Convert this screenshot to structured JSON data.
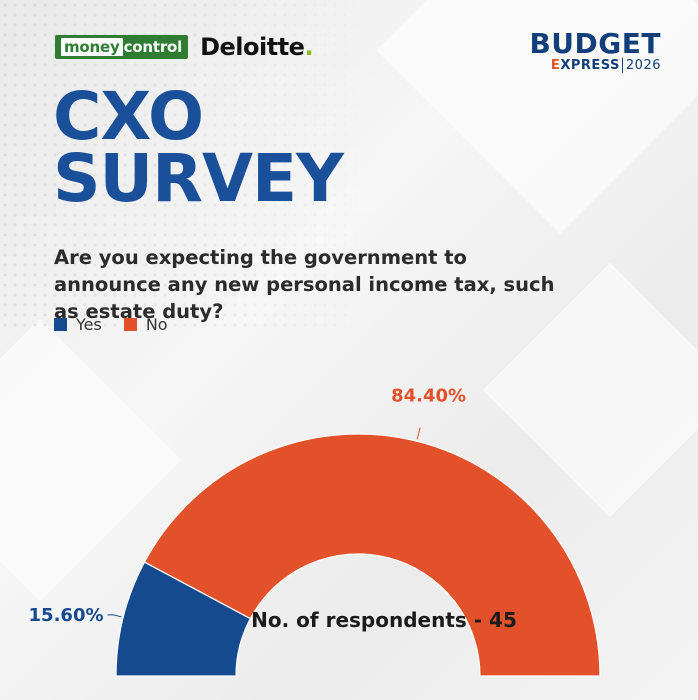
{
  "header": {
    "partner_logo_1": "moneycontrol",
    "partner_logo_2": "Deloitte",
    "brand": {
      "line1": "BUDGET",
      "line2": "EXPRESS",
      "year": "2026"
    }
  },
  "title": {
    "line1": "CXO",
    "line2": "SURVEY"
  },
  "question": "Are you expecting the government to announce any new personal income tax, such as estate duty?",
  "colors": {
    "yes": "#154a8e",
    "no": "#e2512a",
    "title": "#1a4f99"
  },
  "chart_data": {
    "type": "pie",
    "variant": "semi-donut",
    "categories": [
      "Yes",
      "No"
    ],
    "values": [
      15.6,
      84.4
    ],
    "labels": [
      "15.60%",
      "84.40%"
    ],
    "legend": "top-left",
    "note": "No. of respondents - 45"
  }
}
